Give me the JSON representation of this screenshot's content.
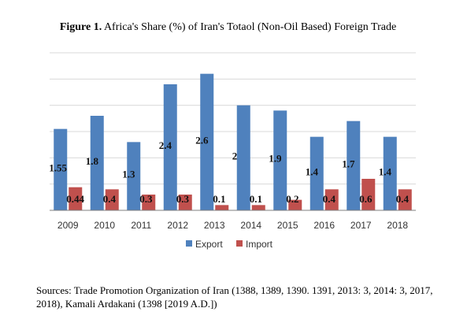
{
  "figure": {
    "label": "Figure 1.",
    "title_rest": " Africa's Share (%) of Iran's Totaol (Non-Oil Based) Foreign Trade"
  },
  "source_text": "Sources: Trade Promotion Organization of Iran (1388, 1389, 1390. 1391, 2013: 3, 2014: 3, 2017, 2018), Kamali Ardakani (1398 [2019 A.D.])",
  "colors": {
    "export": "#4f81bd",
    "import": "#c0504d",
    "grid": "#d9d9d9",
    "axis": "#7f7f7f"
  },
  "chart_data": {
    "type": "bar",
    "title": "Africa's Share (%) of Iran's Totaol (Non-Oil Based) Foreign Trade",
    "categories": [
      "2009",
      "2010",
      "2011",
      "2012",
      "2013",
      "2014",
      "2015",
      "2016",
      "2017",
      "2018"
    ],
    "series": [
      {
        "name": "Export",
        "values": [
          1.55,
          1.8,
          1.3,
          2.4,
          2.6,
          2,
          1.9,
          1.4,
          1.7,
          1.4
        ],
        "labels": [
          "1.55",
          "1.8",
          "1.3",
          "2.4",
          "2.6",
          "2",
          "1.9",
          "1.4",
          "1.7",
          "1.4"
        ]
      },
      {
        "name": "Import",
        "values": [
          0.44,
          0.4,
          0.3,
          0.3,
          0.1,
          0.1,
          0.2,
          0.4,
          0.6,
          0.4
        ],
        "labels": [
          "0.44",
          "0.4",
          "0.3",
          "0.3",
          "0.1",
          "0.1",
          "0.2",
          "0.4",
          "0.6",
          "0.4"
        ]
      }
    ],
    "ylim": [
      0,
      3
    ],
    "grid": true,
    "legend_position": "bottom"
  }
}
